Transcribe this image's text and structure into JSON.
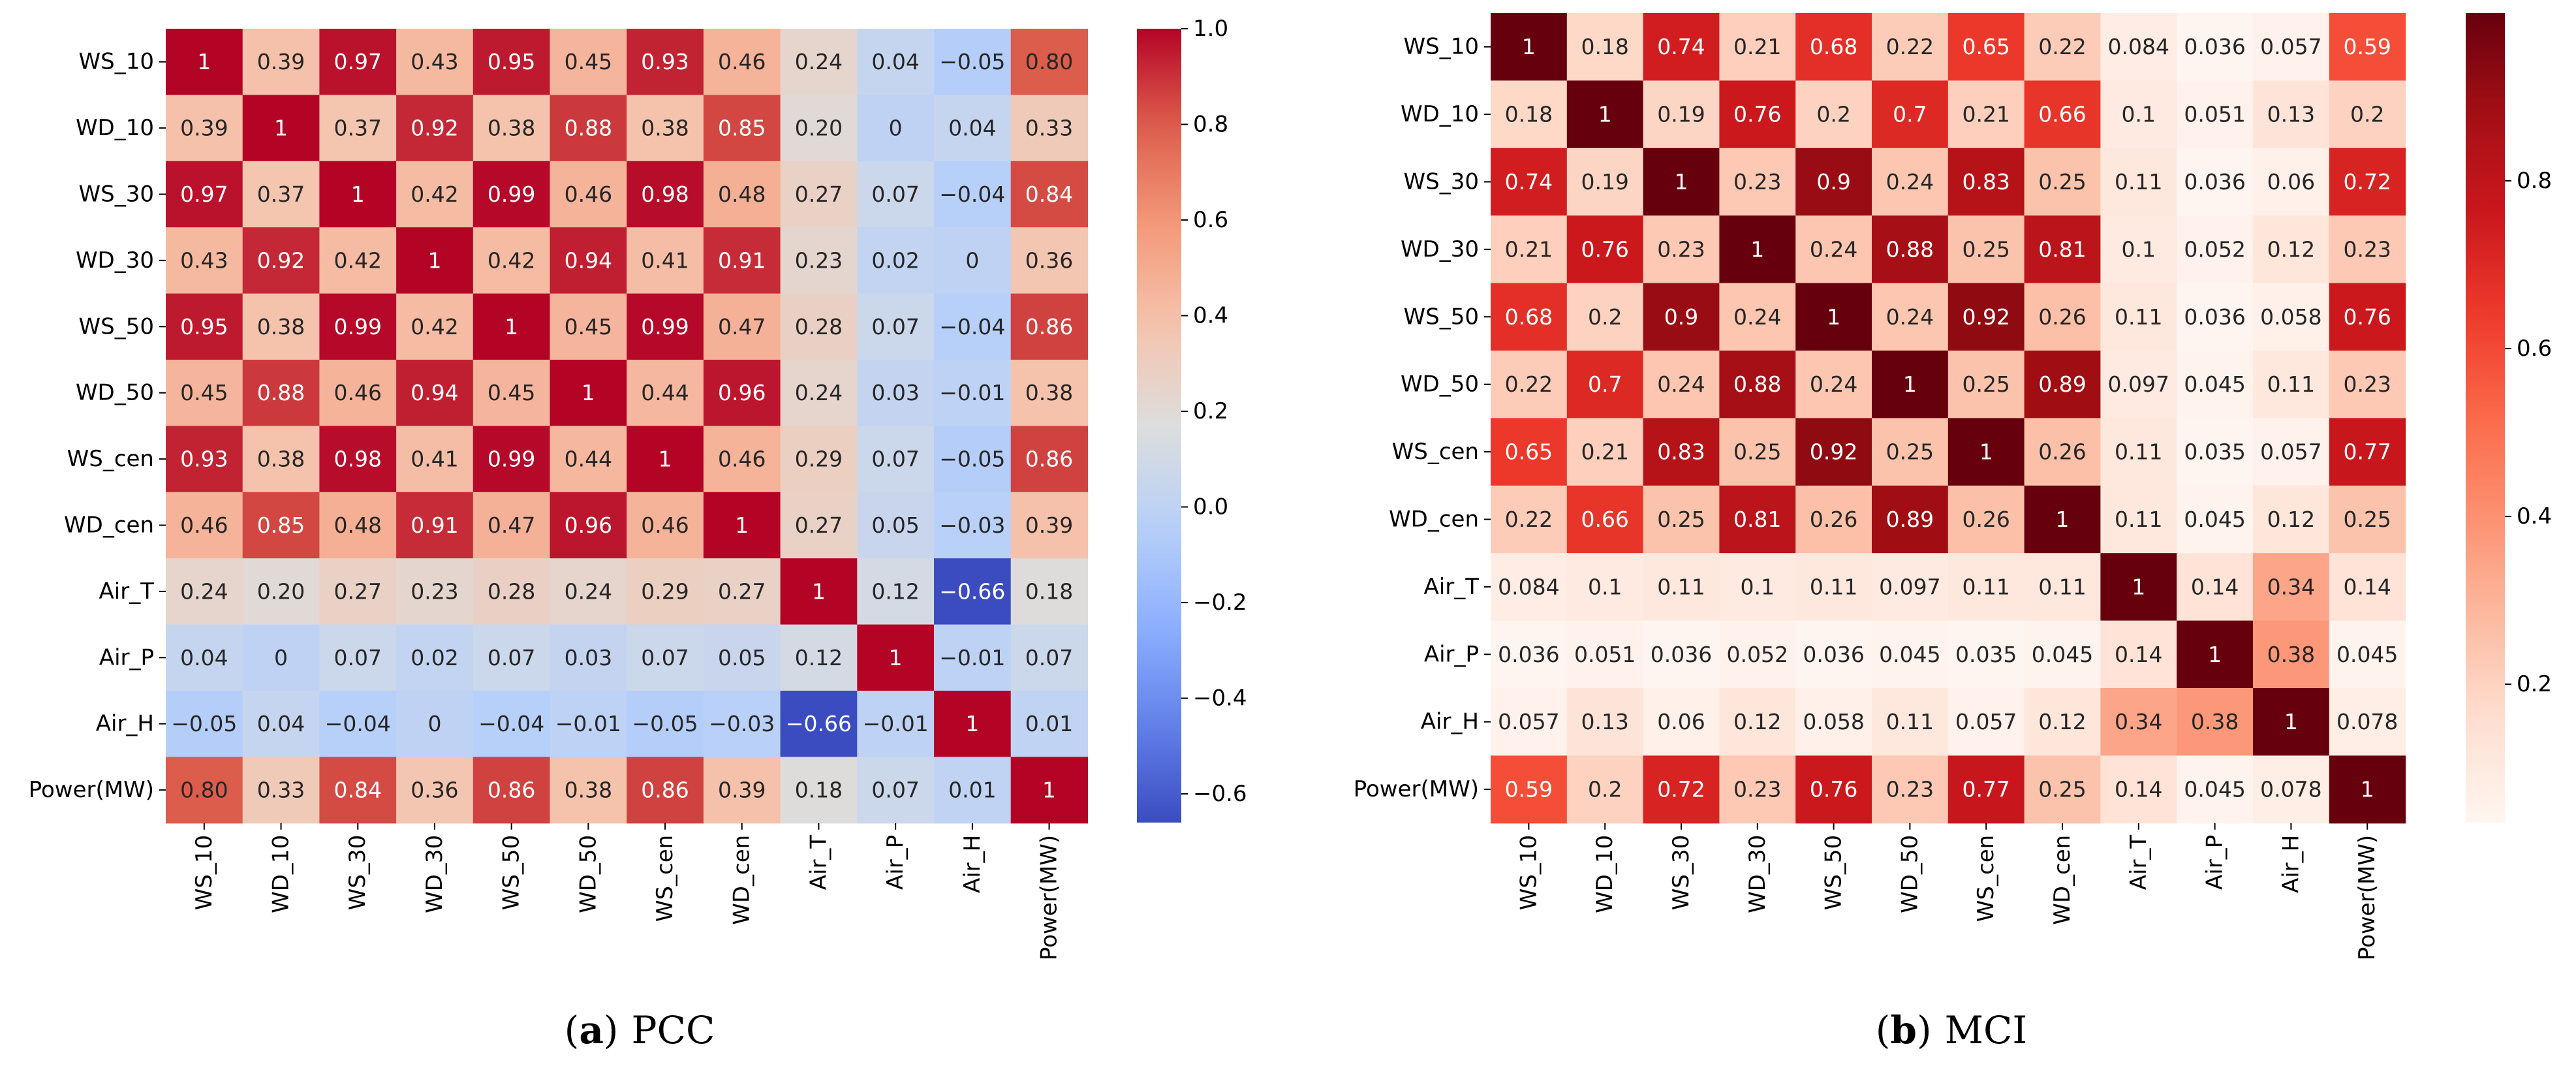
{
  "chart_data": [
    {
      "type": "heatmap",
      "caption_letter": "a",
      "caption_title": "PCC",
      "colormap": "coolwarm",
      "vmin": -0.66,
      "vmax": 1.0,
      "colorbar_ticks": [
        "1.0",
        "0.8",
        "0.6",
        "0.4",
        "0.2",
        "0.0",
        "−0.2",
        "−0.4",
        "−0.6"
      ],
      "colorbar_tick_values": [
        1.0,
        0.8,
        0.6,
        0.4,
        0.2,
        0.0,
        -0.2,
        -0.4,
        -0.6
      ],
      "rows": [
        "WS_10",
        "WD_10",
        "WS_30",
        "WD_30",
        "WS_50",
        "WD_50",
        "WS_cen",
        "WD_cen",
        "Air_T",
        "Air_P",
        "Air_H",
        "Power(MW)"
      ],
      "cols": [
        "WS_10",
        "WD_10",
        "WS_30",
        "WD_30",
        "WS_50",
        "WD_50",
        "WS_cen",
        "WD_cen",
        "Air_T",
        "Air_P",
        "Air_H",
        "Power(MW)"
      ],
      "values": [
        [
          1,
          0.39,
          0.97,
          0.43,
          0.95,
          0.45,
          0.93,
          0.46,
          0.24,
          0.04,
          -0.05,
          0.8
        ],
        [
          0.39,
          1,
          0.37,
          0.92,
          0.38,
          0.88,
          0.38,
          0.85,
          0.2,
          0,
          0.04,
          0.33
        ],
        [
          0.97,
          0.37,
          1,
          0.42,
          0.99,
          0.46,
          0.98,
          0.48,
          0.27,
          0.07,
          -0.04,
          0.84
        ],
        [
          0.43,
          0.92,
          0.42,
          1,
          0.42,
          0.94,
          0.41,
          0.91,
          0.23,
          0.02,
          0,
          0.36
        ],
        [
          0.95,
          0.38,
          0.99,
          0.42,
          1,
          0.45,
          0.99,
          0.47,
          0.28,
          0.07,
          -0.04,
          0.86
        ],
        [
          0.45,
          0.88,
          0.46,
          0.94,
          0.45,
          1,
          0.44,
          0.96,
          0.24,
          0.03,
          -0.01,
          0.38
        ],
        [
          0.93,
          0.38,
          0.98,
          0.41,
          0.99,
          0.44,
          1,
          0.46,
          0.29,
          0.07,
          -0.05,
          0.86
        ],
        [
          0.46,
          0.85,
          0.48,
          0.91,
          0.47,
          0.96,
          0.46,
          1,
          0.27,
          0.05,
          -0.03,
          0.39
        ],
        [
          0.24,
          0.2,
          0.27,
          0.23,
          0.28,
          0.24,
          0.29,
          0.27,
          1,
          0.12,
          -0.66,
          0.18
        ],
        [
          0.04,
          0,
          0.07,
          0.02,
          0.07,
          0.03,
          0.07,
          0.05,
          0.12,
          1,
          -0.01,
          0.07
        ],
        [
          -0.05,
          0.04,
          -0.04,
          0,
          -0.04,
          -0.01,
          -0.05,
          -0.03,
          -0.66,
          -0.01,
          1,
          0.01
        ],
        [
          0.8,
          0.33,
          0.84,
          0.36,
          0.86,
          0.38,
          0.86,
          0.39,
          0.18,
          0.07,
          0.01,
          1
        ]
      ],
      "labels": [
        [
          "1",
          "0.39",
          "0.97",
          "0.43",
          "0.95",
          "0.45",
          "0.93",
          "0.46",
          "0.24",
          "0.04",
          "−0.05",
          "0.80"
        ],
        [
          "0.39",
          "1",
          "0.37",
          "0.92",
          "0.38",
          "0.88",
          "0.38",
          "0.85",
          "0.20",
          "0",
          "0.04",
          "0.33"
        ],
        [
          "0.97",
          "0.37",
          "1",
          "0.42",
          "0.99",
          "0.46",
          "0.98",
          "0.48",
          "0.27",
          "0.07",
          "−0.04",
          "0.84"
        ],
        [
          "0.43",
          "0.92",
          "0.42",
          "1",
          "0.42",
          "0.94",
          "0.41",
          "0.91",
          "0.23",
          "0.02",
          "0",
          "0.36"
        ],
        [
          "0.95",
          "0.38",
          "0.99",
          "0.42",
          "1",
          "0.45",
          "0.99",
          "0.47",
          "0.28",
          "0.07",
          "−0.04",
          "0.86"
        ],
        [
          "0.45",
          "0.88",
          "0.46",
          "0.94",
          "0.45",
          "1",
          "0.44",
          "0.96",
          "0.24",
          "0.03",
          "−0.01",
          "0.38"
        ],
        [
          "0.93",
          "0.38",
          "0.98",
          "0.41",
          "0.99",
          "0.44",
          "1",
          "0.46",
          "0.29",
          "0.07",
          "−0.05",
          "0.86"
        ],
        [
          "0.46",
          "0.85",
          "0.48",
          "0.91",
          "0.47",
          "0.96",
          "0.46",
          "1",
          "0.27",
          "0.05",
          "−0.03",
          "0.39"
        ],
        [
          "0.24",
          "0.20",
          "0.27",
          "0.23",
          "0.28",
          "0.24",
          "0.29",
          "0.27",
          "1",
          "0.12",
          "−0.66",
          "0.18"
        ],
        [
          "0.04",
          "0",
          "0.07",
          "0.02",
          "0.07",
          "0.03",
          "0.07",
          "0.05",
          "0.12",
          "1",
          "−0.01",
          "0.07"
        ],
        [
          "−0.05",
          "0.04",
          "−0.04",
          "0",
          "−0.04",
          "−0.01",
          "−0.05",
          "−0.03",
          "−0.66",
          "−0.01",
          "1",
          "0.01"
        ],
        [
          "0.80",
          "0.33",
          "0.84",
          "0.36",
          "0.86",
          "0.38",
          "0.86",
          "0.39",
          "0.18",
          "0.07",
          "0.01",
          "1"
        ]
      ]
    },
    {
      "type": "heatmap",
      "caption_letter": "b",
      "caption_title": "MCI",
      "colormap": "reds",
      "vmin": 0.035,
      "vmax": 1.0,
      "colorbar_ticks": [
        "0.8",
        "0.6",
        "0.4",
        "0.2"
      ],
      "colorbar_tick_values": [
        0.8,
        0.6,
        0.4,
        0.2
      ],
      "rows": [
        "WS_10",
        "WD_10",
        "WS_30",
        "WD_30",
        "WS_50",
        "WD_50",
        "WS_cen",
        "WD_cen",
        "Air_T",
        "Air_P",
        "Air_H",
        "Power(MW)"
      ],
      "cols": [
        "WS_10",
        "WD_10",
        "WS_30",
        "WD_30",
        "WS_50",
        "WD_50",
        "WS_cen",
        "WD_cen",
        "Air_T",
        "Air_P",
        "Air_H",
        "Power(MW)"
      ],
      "values": [
        [
          1,
          0.18,
          0.74,
          0.21,
          0.68,
          0.22,
          0.65,
          0.22,
          0.084,
          0.036,
          0.057,
          0.59
        ],
        [
          0.18,
          1,
          0.19,
          0.76,
          0.2,
          0.7,
          0.21,
          0.66,
          0.1,
          0.051,
          0.13,
          0.2
        ],
        [
          0.74,
          0.19,
          1,
          0.23,
          0.9,
          0.24,
          0.83,
          0.25,
          0.11,
          0.036,
          0.06,
          0.72
        ],
        [
          0.21,
          0.76,
          0.23,
          1,
          0.24,
          0.88,
          0.25,
          0.81,
          0.1,
          0.052,
          0.12,
          0.23
        ],
        [
          0.68,
          0.2,
          0.9,
          0.24,
          1,
          0.24,
          0.92,
          0.26,
          0.11,
          0.036,
          0.058,
          0.76
        ],
        [
          0.22,
          0.7,
          0.24,
          0.88,
          0.24,
          1,
          0.25,
          0.89,
          0.097,
          0.045,
          0.11,
          0.23
        ],
        [
          0.65,
          0.21,
          0.83,
          0.25,
          0.92,
          0.25,
          1,
          0.26,
          0.11,
          0.035,
          0.057,
          0.77
        ],
        [
          0.22,
          0.66,
          0.25,
          0.81,
          0.26,
          0.89,
          0.26,
          1,
          0.11,
          0.045,
          0.12,
          0.25
        ],
        [
          0.084,
          0.1,
          0.11,
          0.1,
          0.11,
          0.097,
          0.11,
          0.11,
          1,
          0.14,
          0.34,
          0.14
        ],
        [
          0.036,
          0.051,
          0.036,
          0.052,
          0.036,
          0.045,
          0.035,
          0.045,
          0.14,
          1,
          0.38,
          0.045
        ],
        [
          0.057,
          0.13,
          0.06,
          0.12,
          0.058,
          0.11,
          0.057,
          0.12,
          0.34,
          0.38,
          1,
          0.078
        ],
        [
          0.59,
          0.2,
          0.72,
          0.23,
          0.76,
          0.23,
          0.77,
          0.25,
          0.14,
          0.045,
          0.078,
          1
        ]
      ],
      "labels": [
        [
          "1",
          "0.18",
          "0.74",
          "0.21",
          "0.68",
          "0.22",
          "0.65",
          "0.22",
          "0.084",
          "0.036",
          "0.057",
          "0.59"
        ],
        [
          "0.18",
          "1",
          "0.19",
          "0.76",
          "0.2",
          "0.7",
          "0.21",
          "0.66",
          "0.1",
          "0.051",
          "0.13",
          "0.2"
        ],
        [
          "0.74",
          "0.19",
          "1",
          "0.23",
          "0.9",
          "0.24",
          "0.83",
          "0.25",
          "0.11",
          "0.036",
          "0.06",
          "0.72"
        ],
        [
          "0.21",
          "0.76",
          "0.23",
          "1",
          "0.24",
          "0.88",
          "0.25",
          "0.81",
          "0.1",
          "0.052",
          "0.12",
          "0.23"
        ],
        [
          "0.68",
          "0.2",
          "0.9",
          "0.24",
          "1",
          "0.24",
          "0.92",
          "0.26",
          "0.11",
          "0.036",
          "0.058",
          "0.76"
        ],
        [
          "0.22",
          "0.7",
          "0.24",
          "0.88",
          "0.24",
          "1",
          "0.25",
          "0.89",
          "0.097",
          "0.045",
          "0.11",
          "0.23"
        ],
        [
          "0.65",
          "0.21",
          "0.83",
          "0.25",
          "0.92",
          "0.25",
          "1",
          "0.26",
          "0.11",
          "0.035",
          "0.057",
          "0.77"
        ],
        [
          "0.22",
          "0.66",
          "0.25",
          "0.81",
          "0.26",
          "0.89",
          "0.26",
          "1",
          "0.11",
          "0.045",
          "0.12",
          "0.25"
        ],
        [
          "0.084",
          "0.1",
          "0.11",
          "0.1",
          "0.11",
          "0.097",
          "0.11",
          "0.11",
          "1",
          "0.14",
          "0.34",
          "0.14"
        ],
        [
          "0.036",
          "0.051",
          "0.036",
          "0.052",
          "0.036",
          "0.045",
          "0.035",
          "0.045",
          "0.14",
          "1",
          "0.38",
          "0.045"
        ],
        [
          "0.057",
          "0.13",
          "0.06",
          "0.12",
          "0.058",
          "0.11",
          "0.057",
          "0.12",
          "0.34",
          "0.38",
          "1",
          "0.078"
        ],
        [
          "0.59",
          "0.2",
          "0.72",
          "0.23",
          "0.76",
          "0.23",
          "0.77",
          "0.25",
          "0.14",
          "0.045",
          "0.078",
          "1"
        ]
      ]
    }
  ]
}
